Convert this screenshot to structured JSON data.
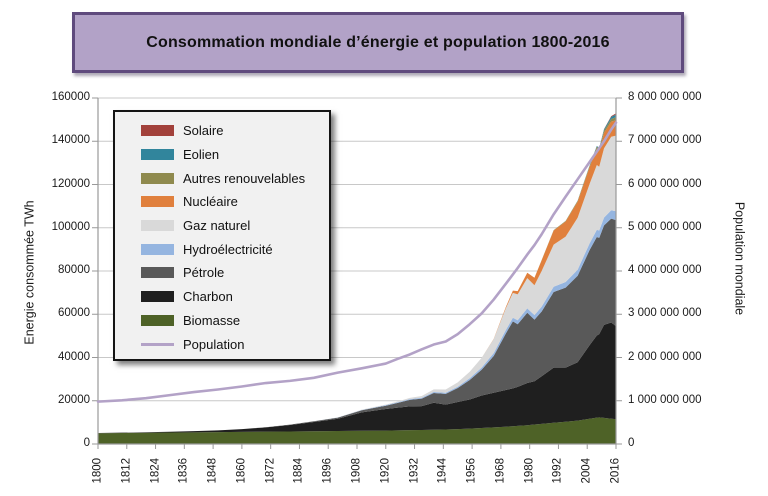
{
  "title": "Consommation mondiale d’énergie et population 1800-2016",
  "axes": {
    "left": {
      "title": "Energie consommée TWh",
      "ticks": [
        "0",
        "20000",
        "40000",
        "60000",
        "80000",
        "100000",
        "120000",
        "140000",
        "160000"
      ]
    },
    "right": {
      "title": "Population mondiale",
      "ticks": [
        "0",
        "1 000 000 000",
        "2 000 000 000",
        "3 000 000 000",
        "4 000 000 000",
        "5 000 000 000",
        "6 000 000 000",
        "7 000 000 000",
        "8 000 000 000"
      ]
    },
    "x": {
      "ticks": [
        "1800",
        "1812",
        "1824",
        "1836",
        "1848",
        "1860",
        "1872",
        "1884",
        "1896",
        "1908",
        "1920",
        "1932",
        "1944",
        "1956",
        "1968",
        "1980",
        "1992",
        "2004",
        "2016"
      ]
    }
  },
  "legend": {
    "items": [
      {
        "label": "Solaire",
        "color": "#a2413b",
        "swatch": "patch"
      },
      {
        "label": "Eolien",
        "color": "#31859c",
        "swatch": "patch"
      },
      {
        "label": "Autres renouvelables",
        "color": "#8f8a4e",
        "swatch": "patch"
      },
      {
        "label": "Nucléaire",
        "color": "#e0803d",
        "swatch": "patch"
      },
      {
        "label": "Gaz naturel",
        "color": "#d9d9d9",
        "swatch": "patch"
      },
      {
        "label": "Hydroélectricité",
        "color": "#95b5e0",
        "swatch": "patch"
      },
      {
        "label": "Pétrole",
        "color": "#595959",
        "swatch": "patch"
      },
      {
        "label": "Charbon",
        "color": "#1f1f1f",
        "swatch": "patch"
      },
      {
        "label": "Biomasse",
        "color": "#4e6227",
        "swatch": "patch"
      },
      {
        "label": "Population",
        "color": "#b3a2c7",
        "swatch": "line"
      }
    ]
  },
  "chart_data": {
    "type": "area",
    "stacked": true,
    "title": "Consommation mondiale d’énergie et population 1800-2016",
    "ylabel_left": "Energie consommée TWh",
    "ylabel_right": "Population mondiale",
    "xlim": [
      1800,
      2016
    ],
    "ylim_left": [
      0,
      160000
    ],
    "ylim_right": [
      0,
      8000000000
    ],
    "grid": "horizontal",
    "legend_position": "upper-left",
    "x": [
      1800,
      1810,
      1820,
      1830,
      1840,
      1850,
      1860,
      1870,
      1880,
      1890,
      1900,
      1910,
      1920,
      1925,
      1930,
      1935,
      1940,
      1945,
      1950,
      1955,
      1960,
      1965,
      1970,
      1973,
      1975,
      1979,
      1982,
      1985,
      1990,
      1995,
      2000,
      2005,
      2008,
      2009,
      2011,
      2014,
      2016
    ],
    "series": [
      {
        "name": "Biomasse",
        "color": "#4e6227",
        "values": [
          5000,
          5100,
          5200,
          5300,
          5400,
          5500,
          5600,
          5700,
          5800,
          5900,
          6000,
          6100,
          6200,
          6300,
          6400,
          6500,
          6600,
          6700,
          6900,
          7100,
          7400,
          7700,
          8000,
          8200,
          8400,
          8700,
          9000,
          9300,
          9800,
          10300,
          10800,
          11700,
          12200,
          12300,
          12100,
          11700,
          11500
        ]
      },
      {
        "name": "Charbon",
        "color": "#1f1f1f",
        "values": [
          100,
          150,
          220,
          350,
          550,
          800,
          1300,
          2000,
          3000,
          4300,
          5700,
          8500,
          10000,
          10500,
          11000,
          11000,
          12500,
          11500,
          12500,
          13500,
          15000,
          16000,
          17000,
          17500,
          18000,
          19500,
          20000,
          22000,
          25500,
          25000,
          27000,
          34000,
          38000,
          38500,
          43000,
          44500,
          43000
        ]
      },
      {
        "name": "Pétrole",
        "color": "#595959",
        "values": [
          0,
          0,
          0,
          0,
          0,
          0,
          0,
          60,
          150,
          300,
          500,
          1000,
          1500,
          2200,
          3000,
          3500,
          4500,
          5000,
          6500,
          9000,
          12000,
          17000,
          26000,
          31000,
          29000,
          32500,
          28500,
          30000,
          35000,
          37000,
          40000,
          44000,
          45500,
          44500,
          46000,
          48000,
          49000
        ]
      },
      {
        "name": "Hydroélectricité",
        "color": "#95b5e0",
        "values": [
          0,
          0,
          0,
          0,
          0,
          0,
          0,
          0,
          0,
          0,
          50,
          150,
          250,
          300,
          350,
          400,
          450,
          500,
          600,
          800,
          1000,
          1300,
          1600,
          1700,
          1800,
          2000,
          2100,
          2200,
          2400,
          2600,
          2800,
          3100,
          3300,
          3400,
          3600,
          3900,
          4100
        ]
      },
      {
        "name": "Gaz naturel",
        "color": "#d9d9d9",
        "values": [
          0,
          0,
          0,
          0,
          0,
          0,
          0,
          0,
          0,
          30,
          70,
          150,
          250,
          350,
          600,
          800,
          1200,
          1500,
          2000,
          3000,
          4500,
          6500,
          10000,
          11500,
          12000,
          14000,
          13800,
          16500,
          19500,
          21000,
          24000,
          27500,
          30000,
          29500,
          32000,
          34000,
          35000
        ]
      },
      {
        "name": "Nucléaire",
        "color": "#e0803d",
        "values": [
          0,
          0,
          0,
          0,
          0,
          0,
          0,
          0,
          0,
          0,
          0,
          0,
          0,
          0,
          0,
          0,
          0,
          0,
          0,
          0,
          0,
          100,
          600,
          1000,
          1500,
          2500,
          3500,
          5000,
          6500,
          7000,
          7500,
          7800,
          7700,
          7400,
          7200,
          7000,
          7100
        ]
      },
      {
        "name": "Autres renouvelables",
        "color": "#8f8a4e",
        "values": [
          0,
          0,
          0,
          0,
          0,
          0,
          0,
          0,
          0,
          0,
          0,
          0,
          0,
          0,
          0,
          0,
          0,
          0,
          0,
          0,
          0,
          0,
          0,
          0,
          0,
          0,
          0,
          100,
          200,
          300,
          400,
          600,
          800,
          850,
          1000,
          1200,
          1400
        ]
      },
      {
        "name": "Eolien",
        "color": "#31859c",
        "values": [
          0,
          0,
          0,
          0,
          0,
          0,
          0,
          0,
          0,
          0,
          0,
          0,
          0,
          0,
          0,
          0,
          0,
          0,
          0,
          0,
          0,
          0,
          0,
          0,
          0,
          0,
          0,
          0,
          0,
          0,
          50,
          150,
          350,
          400,
          600,
          1000,
          1300
        ]
      },
      {
        "name": "Solaire",
        "color": "#a2413b",
        "values": [
          0,
          0,
          0,
          0,
          0,
          0,
          0,
          0,
          0,
          0,
          0,
          0,
          0,
          0,
          0,
          0,
          0,
          0,
          0,
          0,
          0,
          0,
          0,
          0,
          0,
          0,
          0,
          0,
          0,
          0,
          0,
          0,
          30,
          40,
          100,
          300,
          500
        ]
      }
    ],
    "line_series": {
      "name": "Population",
      "axis": "right",
      "color": "#b3a2c7",
      "values_billions": [
        0.98,
        1.01,
        1.06,
        1.13,
        1.2,
        1.26,
        1.33,
        1.41,
        1.46,
        1.53,
        1.65,
        1.75,
        1.86,
        1.97,
        2.07,
        2.19,
        2.3,
        2.37,
        2.54,
        2.77,
        3.02,
        3.34,
        3.7,
        3.92,
        4.07,
        4.38,
        4.6,
        4.85,
        5.31,
        5.72,
        6.12,
        6.52,
        6.76,
        6.84,
        7.0,
        7.27,
        7.43
      ]
    }
  },
  "style_colors": {
    "title_box_fill": "#b2a2c7",
    "title_box_border": "#5f4a7d",
    "legend_background": "#f1f1f1",
    "gridline": "#c8c8c8",
    "axis_line": "#999999"
  }
}
